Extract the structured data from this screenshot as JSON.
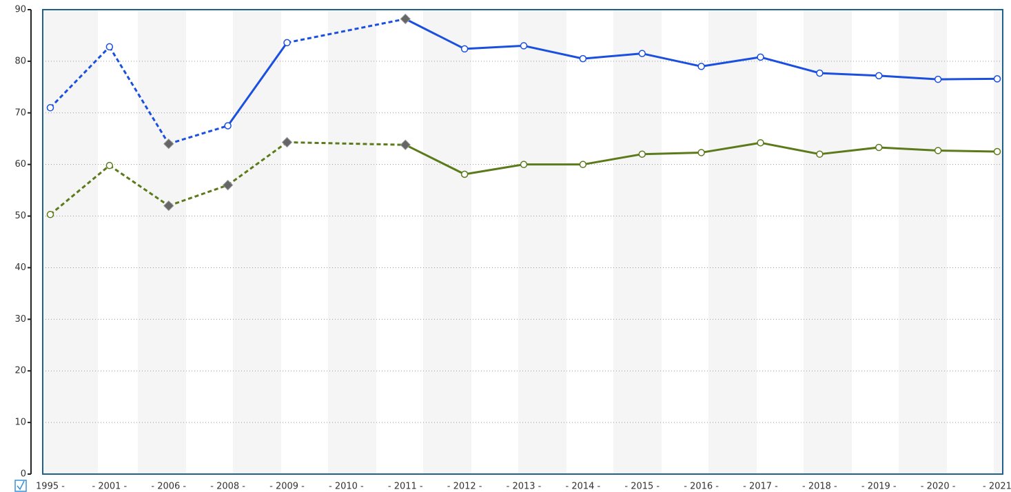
{
  "chart_data": {
    "type": "line",
    "categories": [
      "1995 -",
      "- 2001 -",
      "- 2006 -",
      "- 2008 -",
      "- 2009 -",
      "- 2010 -",
      "- 2011 -",
      "- 2012 -",
      "- 2013 -",
      "- 2014 -",
      "- 2015 -",
      "- 2016 -",
      "- 2017 -",
      "- 2018 -",
      "- 2019 -",
      "- 2020 -",
      "- 2021"
    ],
    "series": [
      {
        "color": "#1a4fe0",
        "values": [
          71,
          82.8,
          64,
          67.5,
          83.6,
          null,
          88.2,
          82.4,
          83,
          80.5,
          81.5,
          79,
          80.8,
          77.7,
          77.2,
          76.5,
          76.6
        ],
        "markers": [
          "circle",
          "circle",
          "diamond",
          "circle",
          "circle",
          null,
          "diamond",
          "circle",
          "circle",
          "circle",
          "circle",
          "circle",
          "circle",
          "circle",
          "circle",
          "circle",
          "circle"
        ],
        "dashed": [
          false,
          true,
          true,
          true,
          false,
          false,
          true,
          false,
          false,
          false,
          false,
          false,
          false,
          false,
          false,
          false,
          false
        ]
      },
      {
        "color": "#5b7a1a",
        "values": [
          50.3,
          59.8,
          52,
          56,
          64.3,
          null,
          63.8,
          58.1,
          60,
          60,
          62,
          62.3,
          64.2,
          62,
          63.3,
          62.7,
          62.5
        ],
        "markers": [
          "circle",
          "circle",
          "diamond",
          "diamond",
          "diamond",
          null,
          "diamond",
          "circle",
          "circle",
          "circle",
          "circle",
          "circle",
          "circle",
          "circle",
          "circle",
          "circle",
          "circle"
        ],
        "dashed": [
          false,
          true,
          true,
          true,
          true,
          false,
          true,
          false,
          false,
          false,
          false,
          false,
          false,
          false,
          false,
          false,
          false
        ]
      }
    ],
    "ylim": [
      0,
      90
    ],
    "yticks": [
      0,
      10,
      20,
      30,
      40,
      50,
      60,
      70,
      80,
      90
    ],
    "grid": true
  }
}
